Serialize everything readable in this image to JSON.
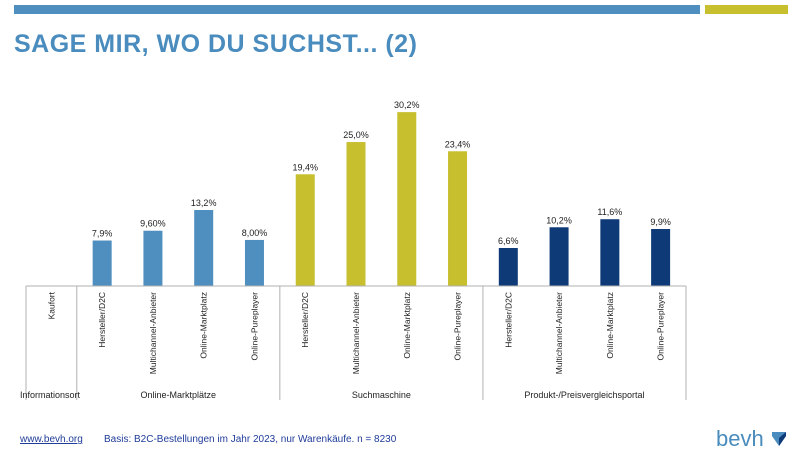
{
  "page": {
    "title": "SAGE MIR, WO DU SUCHST... (2)",
    "footer_link": "www.bevh.org",
    "footer_basis": "Basis: B2C-Bestellungen im Jahr 2023, nur Warenkäufe. n = 8230",
    "logo_text": "bevh",
    "colors": {
      "accent_blue": "#4f8fbf",
      "accent_gold": "#c8bf2e",
      "title": "#4a8cbd",
      "footer": "#1f3c99"
    }
  },
  "chart_data": {
    "type": "bar",
    "row_header": "Informationsort",
    "categories": [
      "Kaufort",
      "Hersteller/D2C",
      "Multichannel-Anbieter",
      "Online-Marktplatz",
      "Online-Pureplayer",
      "Hersteller/D2C",
      "Multichannel-Anbieter",
      "Online-Marktplatz",
      "Online-Pureplayer",
      "Hersteller/D2C",
      "Multichannel-Anbieter",
      "Online-Marktplatz",
      "Online-Pureplayer"
    ],
    "groups": [
      {
        "name": "Online-Marktplätze",
        "color": "#4f8fbf",
        "start": 1,
        "count": 4
      },
      {
        "name": "Suchmaschine",
        "color": "#c8bf2e",
        "start": 5,
        "count": 4
      },
      {
        "name": "Produkt-/Preisvergleichsportal",
        "color": "#0e3a78",
        "start": 9,
        "count": 4
      }
    ],
    "values": [
      null,
      7.9,
      9.6,
      13.2,
      8.0,
      19.4,
      25.0,
      30.2,
      23.4,
      6.6,
      10.2,
      11.6,
      9.9
    ],
    "data_labels": [
      "",
      "7,9%",
      "9,60%",
      "13,2%",
      "8,00%",
      "19,4%",
      "25,0%",
      "30,2%",
      "23,4%",
      "6,6%",
      "10,2%",
      "11,6%",
      "9,9%"
    ],
    "ylim": [
      0,
      33
    ],
    "grid": false,
    "legend": "none"
  }
}
